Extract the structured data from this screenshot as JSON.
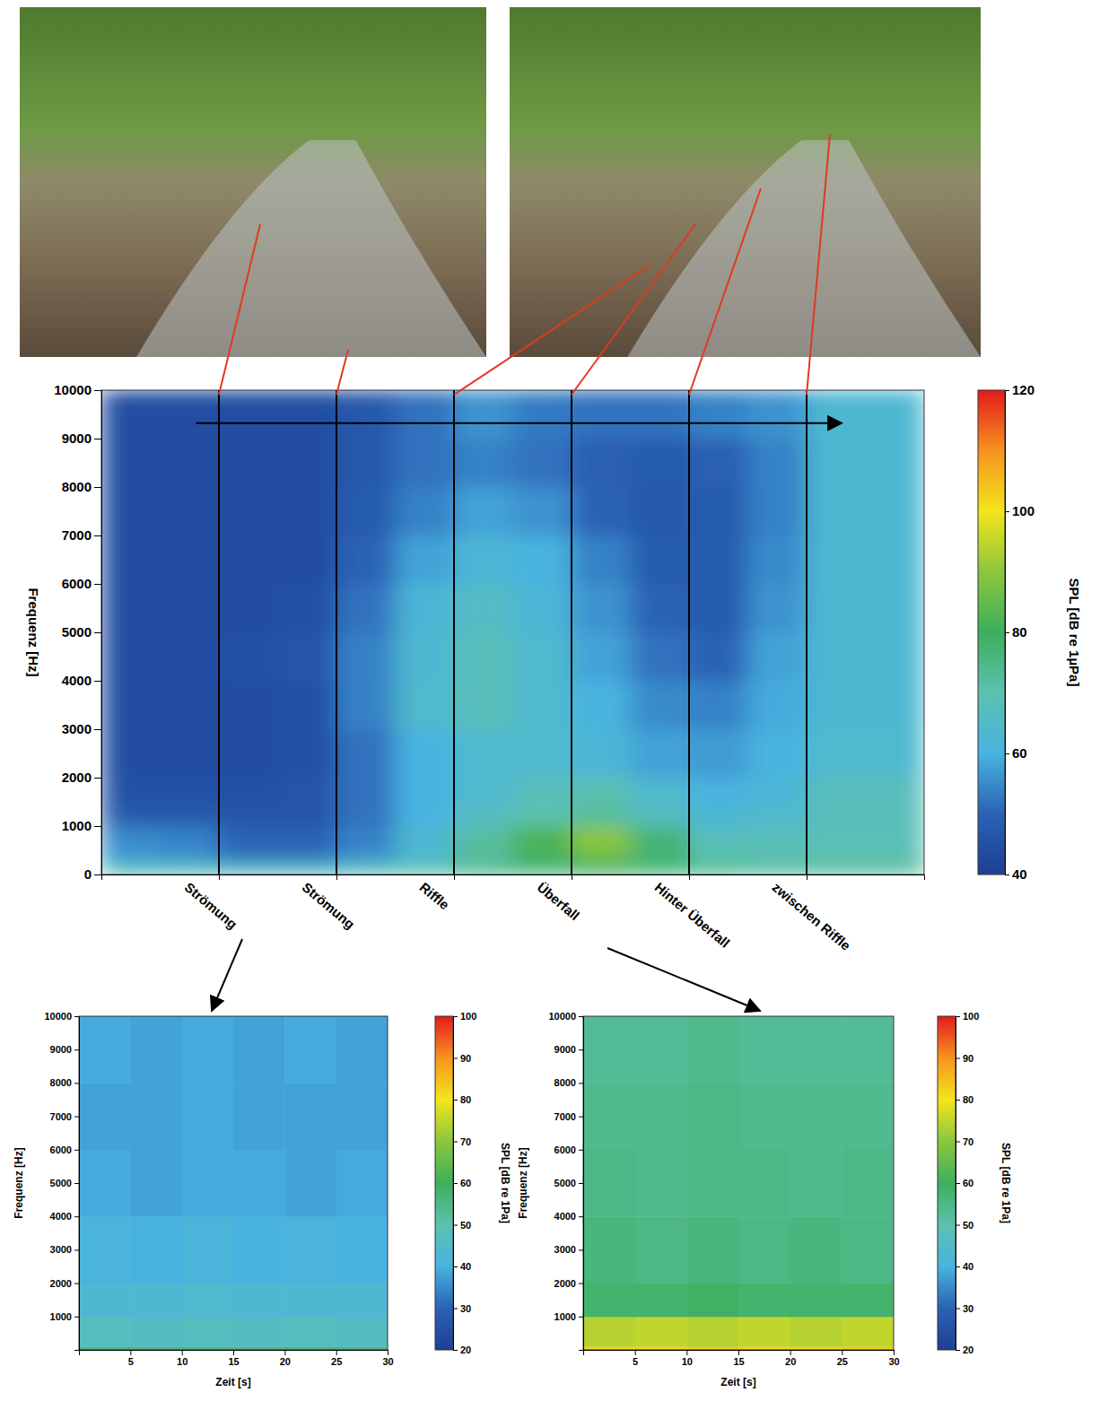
{
  "chart_data": [
    {
      "type": "heatmap",
      "ylabel": "Frequenz [Hz]",
      "xlim": [
        0,
        7
      ],
      "xticks": [
        {
          "value": 1,
          "label": "Strömung"
        },
        {
          "value": 2,
          "label": "Strömung"
        },
        {
          "value": 3,
          "label": "Riffle"
        },
        {
          "value": 4,
          "label": "Überfall"
        },
        {
          "value": 5,
          "label": "Hinter Überfall"
        },
        {
          "value": 6,
          "label": "zwischen Riffle"
        }
      ],
      "ylim": [
        0,
        10000
      ],
      "yticks": [
        0,
        1000,
        2000,
        3000,
        4000,
        5000,
        6000,
        7000,
        8000,
        9000,
        10000
      ],
      "grid": "x",
      "colorbar": {
        "label": "SPL [dB re 1µPa]",
        "lim": [
          40,
          120
        ],
        "ticks": [
          40,
          60,
          80,
          100,
          120
        ]
      },
      "heatmap": {
        "x_bins": [
          0,
          0.5,
          1,
          1.5,
          2,
          2.5,
          3,
          3.5,
          4,
          4.5,
          5,
          5.5,
          6,
          6.5,
          7
        ],
        "y_bins": [
          0,
          250,
          500,
          1000,
          1500,
          2000,
          3000,
          4000,
          5000,
          6000,
          7000,
          8000,
          9000,
          10000
        ],
        "values": [
          [
            68,
            68,
            66,
            66,
            68,
            70,
            74,
            76,
            78,
            76,
            74,
            72,
            72,
            72
          ],
          [
            57,
            56,
            52,
            52,
            56,
            64,
            72,
            80,
            86,
            78,
            70,
            70,
            70,
            70
          ],
          [
            55,
            54,
            50,
            50,
            54,
            63,
            72,
            82,
            90,
            77,
            68,
            68,
            69,
            69
          ],
          [
            47,
            47,
            46,
            46,
            52,
            60,
            66,
            70,
            72,
            66,
            62,
            64,
            68,
            68
          ],
          [
            45,
            45,
            45,
            46,
            52,
            60,
            64,
            68,
            70,
            64,
            60,
            62,
            68,
            68
          ],
          [
            44,
            44,
            44,
            45,
            52,
            60,
            64,
            64,
            62,
            58,
            57,
            60,
            64,
            64
          ],
          [
            44,
            44,
            44,
            45,
            54,
            64,
            68,
            64,
            60,
            55,
            54,
            59,
            63,
            63
          ],
          [
            44,
            44,
            45,
            46,
            54,
            63,
            68,
            64,
            58,
            52,
            50,
            58,
            63,
            63
          ],
          [
            44,
            44,
            44,
            45,
            52,
            62,
            66,
            62,
            56,
            50,
            48,
            56,
            63,
            63
          ],
          [
            44,
            44,
            44,
            44,
            50,
            58,
            62,
            60,
            54,
            48,
            48,
            55,
            63,
            63
          ],
          [
            44,
            44,
            44,
            44,
            48,
            54,
            58,
            56,
            50,
            47,
            48,
            54,
            63,
            63
          ],
          [
            44,
            44,
            44,
            44,
            47,
            52,
            54,
            52,
            49,
            48,
            49,
            54,
            63,
            63
          ],
          [
            44,
            44,
            44,
            44,
            47,
            52,
            56,
            53,
            52,
            52,
            54,
            56,
            63,
            63
          ]
        ]
      }
    },
    {
      "type": "heatmap",
      "xlabel": "Zeit [s]",
      "ylabel": "Frequenz [Hz]",
      "xlim": [
        0,
        30
      ],
      "xticks": [
        5,
        10,
        15,
        20,
        25,
        30
      ],
      "ylim": [
        0,
        10000
      ],
      "yticks": [
        1000,
        2000,
        3000,
        4000,
        5000,
        6000,
        7000,
        8000,
        9000,
        10000
      ],
      "colorbar": {
        "label": "SPL [dB re 1Pa]",
        "lim": [
          20,
          100
        ],
        "ticks": [
          20,
          30,
          40,
          50,
          60,
          70,
          80,
          90,
          100
        ]
      },
      "heatmap": {
        "x_bins": [
          0,
          5,
          10,
          15,
          20,
          25,
          30
        ],
        "y_bins": [
          0,
          100,
          1000,
          2000,
          4000,
          6000,
          8000,
          10000
        ],
        "values": [
          [
            56,
            55,
            56,
            55,
            56,
            55
          ],
          [
            47,
            46,
            47,
            46,
            47,
            46
          ],
          [
            43,
            43,
            44,
            43,
            43,
            43
          ],
          [
            41,
            40,
            41,
            40,
            41,
            40
          ],
          [
            39,
            38,
            39,
            39,
            38,
            39
          ],
          [
            38,
            38,
            39,
            38,
            38,
            38
          ],
          [
            39,
            38,
            39,
            38,
            39,
            38
          ]
        ]
      }
    },
    {
      "type": "heatmap",
      "xlabel": "Zeit [s]",
      "ylabel": "Frequenz [Hz]",
      "xlim": [
        0,
        30
      ],
      "xticks": [
        5,
        10,
        15,
        20,
        25,
        30
      ],
      "ylim": [
        0,
        10000
      ],
      "yticks": [
        1000,
        2000,
        3000,
        4000,
        5000,
        6000,
        7000,
        8000,
        9000,
        10000
      ],
      "colorbar": {
        "label": "SPL [dB re 1Pa]",
        "lim": [
          20,
          100
        ],
        "ticks": [
          20,
          30,
          40,
          50,
          60,
          70,
          80,
          90,
          100
        ]
      },
      "heatmap": {
        "x_bins": [
          0,
          5,
          10,
          15,
          20,
          25,
          30
        ],
        "y_bins": [
          0,
          100,
          1000,
          2000,
          4000,
          6000,
          8000,
          10000
        ],
        "values": [
          [
            82,
            82,
            83,
            82,
            82,
            83
          ],
          [
            74,
            75,
            74,
            75,
            74,
            75
          ],
          [
            58,
            58,
            59,
            58,
            58,
            58
          ],
          [
            56,
            55,
            56,
            55,
            56,
            55
          ],
          [
            55,
            54,
            55,
            55,
            54,
            55
          ],
          [
            54,
            54,
            55,
            54,
            54,
            54
          ],
          [
            53,
            53,
            54,
            53,
            53,
            53
          ]
        ]
      }
    }
  ]
}
